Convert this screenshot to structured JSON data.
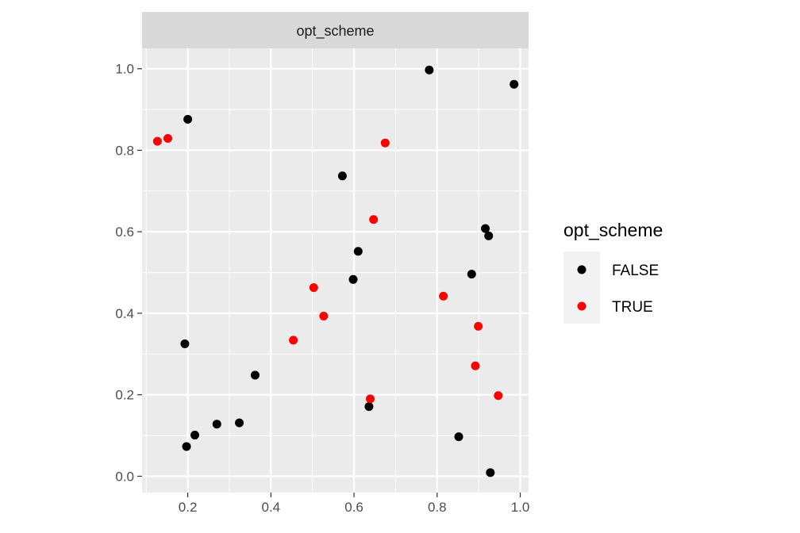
{
  "chart_data": {
    "type": "scatter",
    "facet_title": "opt_scheme",
    "xlim": [
      0.09,
      1.02
    ],
    "ylim": [
      -0.04,
      1.05
    ],
    "x_ticks": [
      0.2,
      0.4,
      0.6,
      0.8,
      1.0
    ],
    "x_tick_labels": [
      "0.2",
      "0.4",
      "0.6",
      "0.8",
      "1.0"
    ],
    "y_ticks": [
      0.0,
      0.2,
      0.4,
      0.6,
      0.8,
      1.0
    ],
    "y_tick_labels": [
      "0.0",
      "0.2",
      "0.4",
      "0.6",
      "0.8",
      "1.0"
    ],
    "grid": true,
    "legend": {
      "title": "opt_scheme",
      "position": "right",
      "entries": [
        {
          "label": "FALSE",
          "color": "#000000"
        },
        {
          "label": "TRUE",
          "color": "#ff0000"
        }
      ]
    },
    "series": [
      {
        "name": "FALSE",
        "color": "#000000",
        "points": [
          {
            "x": 0.781,
            "y": 0.997
          },
          {
            "x": 0.985,
            "y": 0.962
          },
          {
            "x": 0.2,
            "y": 0.876
          },
          {
            "x": 0.572,
            "y": 0.737
          },
          {
            "x": 0.916,
            "y": 0.608
          },
          {
            "x": 0.924,
            "y": 0.59
          },
          {
            "x": 0.61,
            "y": 0.552
          },
          {
            "x": 0.883,
            "y": 0.496
          },
          {
            "x": 0.598,
            "y": 0.483
          },
          {
            "x": 0.193,
            "y": 0.325
          },
          {
            "x": 0.362,
            "y": 0.248
          },
          {
            "x": 0.636,
            "y": 0.171
          },
          {
            "x": 0.324,
            "y": 0.131
          },
          {
            "x": 0.27,
            "y": 0.128
          },
          {
            "x": 0.217,
            "y": 0.101
          },
          {
            "x": 0.852,
            "y": 0.097
          },
          {
            "x": 0.197,
            "y": 0.073
          },
          {
            "x": 0.928,
            "y": 0.009
          }
        ]
      },
      {
        "name": "TRUE",
        "color": "#ff0000",
        "points": [
          {
            "x": 0.152,
            "y": 0.829
          },
          {
            "x": 0.127,
            "y": 0.822
          },
          {
            "x": 0.675,
            "y": 0.818
          },
          {
            "x": 0.647,
            "y": 0.63
          },
          {
            "x": 0.503,
            "y": 0.463
          },
          {
            "x": 0.815,
            "y": 0.442
          },
          {
            "x": 0.527,
            "y": 0.393
          },
          {
            "x": 0.899,
            "y": 0.368
          },
          {
            "x": 0.454,
            "y": 0.334
          },
          {
            "x": 0.892,
            "y": 0.271
          },
          {
            "x": 0.947,
            "y": 0.198
          },
          {
            "x": 0.639,
            "y": 0.19
          }
        ]
      }
    ]
  }
}
